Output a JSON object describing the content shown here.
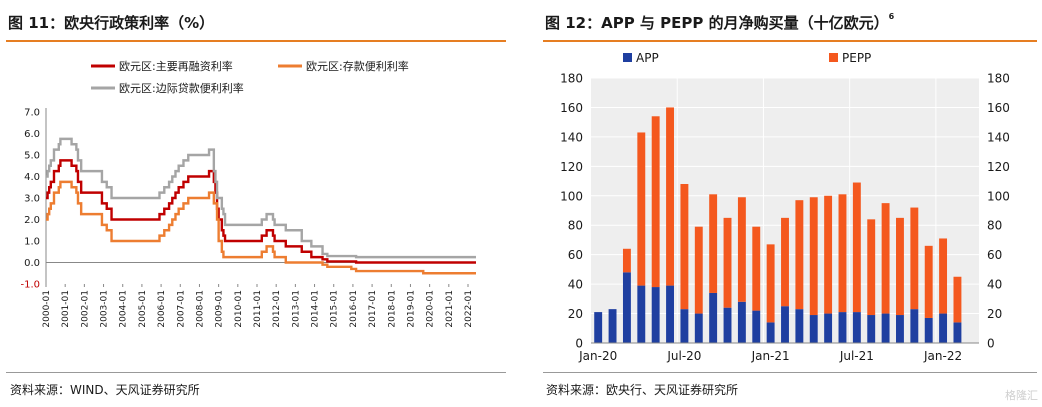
{
  "left_panel": {
    "title": "图 11：欧央行政策利率（%）",
    "source": "资料来源：WIND、天风证券研究所"
  },
  "right_panel": {
    "title": "图 12：APP 与 PEPP 的月净购买量（十亿欧元）",
    "title_sup": "6",
    "source": "资料来源：欧央行、天风证券研究所"
  },
  "watermark": "格隆汇",
  "colors": {
    "accent": "#E67E22",
    "mro": "#C00000",
    "deposit": "#ED7D31",
    "marginal": "#A5A5A5",
    "app": "#1F3FA0",
    "pepp": "#F4581E"
  },
  "chart_data": [
    {
      "type": "line",
      "ylim": [
        -1.0,
        7.0
      ],
      "yticks": [
        "-1.0",
        "0.0",
        "1.0",
        "2.0",
        "3.0",
        "4.0",
        "5.0",
        "6.0",
        "7.0"
      ],
      "xticks": [
        "2000-01",
        "2001-01",
        "2002-01",
        "2003-01",
        "2004-01",
        "2005-01",
        "2006-01",
        "2007-01",
        "2008-01",
        "2009-01",
        "2010-01",
        "2011-01",
        "2012-01",
        "2013-01",
        "2014-01",
        "2015-01",
        "2016-01",
        "2017-01",
        "2018-01",
        "2019-01",
        "2020-01",
        "2021-01",
        "2022-01"
      ],
      "legend": [
        "欧元区:主要再融资利率",
        "欧元区:存款便利利率",
        "欧元区:边际贷款便利利率"
      ],
      "series": [
        {
          "name": "欧元区:主要再融资利率",
          "color": "#C00000",
          "points": [
            [
              "2000-01",
              3.0
            ],
            [
              "2000-02",
              3.25
            ],
            [
              "2000-03",
              3.5
            ],
            [
              "2000-04",
              3.75
            ],
            [
              "2000-06",
              4.25
            ],
            [
              "2000-09",
              4.5
            ],
            [
              "2000-10",
              4.75
            ],
            [
              "2001-05",
              4.5
            ],
            [
              "2001-08",
              4.25
            ],
            [
              "2001-09",
              3.75
            ],
            [
              "2001-11",
              3.25
            ],
            [
              "2002-12",
              2.75
            ],
            [
              "2003-03",
              2.5
            ],
            [
              "2003-06",
              2.0
            ],
            [
              "2005-12",
              2.25
            ],
            [
              "2006-03",
              2.5
            ],
            [
              "2006-06",
              2.75
            ],
            [
              "2006-08",
              3.0
            ],
            [
              "2006-10",
              3.25
            ],
            [
              "2006-12",
              3.5
            ],
            [
              "2007-03",
              3.75
            ],
            [
              "2007-06",
              4.0
            ],
            [
              "2008-07",
              4.25
            ],
            [
              "2008-10",
              3.75
            ],
            [
              "2008-11",
              3.25
            ],
            [
              "2008-12",
              2.5
            ],
            [
              "2009-01",
              2.0
            ],
            [
              "2009-03",
              1.5
            ],
            [
              "2009-04",
              1.25
            ],
            [
              "2009-05",
              1.0
            ],
            [
              "2011-04",
              1.25
            ],
            [
              "2011-07",
              1.5
            ],
            [
              "2011-11",
              1.25
            ],
            [
              "2011-12",
              1.0
            ],
            [
              "2012-07",
              0.75
            ],
            [
              "2013-05",
              0.5
            ],
            [
              "2013-11",
              0.25
            ],
            [
              "2014-06",
              0.15
            ],
            [
              "2014-09",
              0.05
            ],
            [
              "2016-03",
              0.0
            ],
            [
              "2022-06",
              0.0
            ]
          ]
        },
        {
          "name": "欧元区:存款便利利率",
          "color": "#ED7D31",
          "points": [
            [
              "2000-01",
              2.0
            ],
            [
              "2000-02",
              2.25
            ],
            [
              "2000-03",
              2.5
            ],
            [
              "2000-04",
              2.75
            ],
            [
              "2000-06",
              3.25
            ],
            [
              "2000-09",
              3.5
            ],
            [
              "2000-10",
              3.75
            ],
            [
              "2001-05",
              3.5
            ],
            [
              "2001-08",
              3.25
            ],
            [
              "2001-09",
              2.75
            ],
            [
              "2001-11",
              2.25
            ],
            [
              "2002-12",
              1.75
            ],
            [
              "2003-03",
              1.5
            ],
            [
              "2003-06",
              1.0
            ],
            [
              "2005-12",
              1.25
            ],
            [
              "2006-03",
              1.5
            ],
            [
              "2006-06",
              1.75
            ],
            [
              "2006-08",
              2.0
            ],
            [
              "2006-10",
              2.25
            ],
            [
              "2006-12",
              2.5
            ],
            [
              "2007-03",
              2.75
            ],
            [
              "2007-06",
              3.0
            ],
            [
              "2008-07",
              3.25
            ],
            [
              "2008-10",
              2.75
            ],
            [
              "2008-11",
              2.75
            ],
            [
              "2008-12",
              2.0
            ],
            [
              "2009-01",
              1.0
            ],
            [
              "2009-03",
              0.5
            ],
            [
              "2009-04",
              0.25
            ],
            [
              "2011-04",
              0.5
            ],
            [
              "2011-07",
              0.75
            ],
            [
              "2011-11",
              0.5
            ],
            [
              "2011-12",
              0.25
            ],
            [
              "2012-07",
              0.0
            ],
            [
              "2014-06",
              -0.1
            ],
            [
              "2014-09",
              -0.2
            ],
            [
              "2015-12",
              -0.3
            ],
            [
              "2016-03",
              -0.4
            ],
            [
              "2019-09",
              -0.5
            ],
            [
              "2022-06",
              -0.5
            ]
          ]
        },
        {
          "name": "欧元区:边际贷款便利利率",
          "color": "#A5A5A5",
          "points": [
            [
              "2000-01",
              4.0
            ],
            [
              "2000-02",
              4.25
            ],
            [
              "2000-03",
              4.5
            ],
            [
              "2000-04",
              4.75
            ],
            [
              "2000-06",
              5.25
            ],
            [
              "2000-09",
              5.5
            ],
            [
              "2000-10",
              5.75
            ],
            [
              "2001-05",
              5.5
            ],
            [
              "2001-08",
              5.25
            ],
            [
              "2001-09",
              4.75
            ],
            [
              "2001-11",
              4.25
            ],
            [
              "2002-12",
              3.75
            ],
            [
              "2003-03",
              3.5
            ],
            [
              "2003-06",
              3.0
            ],
            [
              "2005-12",
              3.25
            ],
            [
              "2006-03",
              3.5
            ],
            [
              "2006-06",
              3.75
            ],
            [
              "2006-08",
              4.0
            ],
            [
              "2006-10",
              4.25
            ],
            [
              "2006-12",
              4.5
            ],
            [
              "2007-03",
              4.75
            ],
            [
              "2007-06",
              5.0
            ],
            [
              "2008-07",
              5.25
            ],
            [
              "2008-10",
              4.25
            ],
            [
              "2008-11",
              3.75
            ],
            [
              "2008-12",
              3.0
            ],
            [
              "2009-01",
              3.0
            ],
            [
              "2009-03",
              2.5
            ],
            [
              "2009-04",
              2.25
            ],
            [
              "2009-05",
              1.75
            ],
            [
              "2011-04",
              2.0
            ],
            [
              "2011-07",
              2.25
            ],
            [
              "2011-11",
              2.0
            ],
            [
              "2011-12",
              1.75
            ],
            [
              "2012-07",
              1.5
            ],
            [
              "2013-05",
              1.0
            ],
            [
              "2013-11",
              0.75
            ],
            [
              "2014-06",
              0.4
            ],
            [
              "2014-09",
              0.3
            ],
            [
              "2016-03",
              0.25
            ],
            [
              "2022-06",
              0.25
            ]
          ]
        }
      ]
    },
    {
      "type": "bar",
      "stacked": true,
      "ylim": [
        0,
        180
      ],
      "yticks": [
        "0",
        "20",
        "40",
        "60",
        "80",
        "100",
        "120",
        "140",
        "160",
        "180"
      ],
      "xticks": [
        "Jan-20",
        "Jul-20",
        "Jan-21",
        "Jul-21",
        "Jan-22"
      ],
      "legend": [
        "APP",
        "PEPP"
      ],
      "categories": [
        "2020-01",
        "2020-02",
        "2020-03",
        "2020-04",
        "2020-05",
        "2020-06",
        "2020-07",
        "2020-08",
        "2020-09",
        "2020-10",
        "2020-11",
        "2020-12",
        "2021-01",
        "2021-02",
        "2021-03",
        "2021-04",
        "2021-05",
        "2021-06",
        "2021-07",
        "2021-08",
        "2021-09",
        "2021-10",
        "2021-11",
        "2021-12",
        "2022-01",
        "2022-02",
        "2022-03"
      ],
      "series": [
        {
          "name": "APP",
          "color": "#1F3FA0",
          "values": [
            21,
            23,
            48,
            39,
            38,
            39,
            23,
            20,
            34,
            24,
            28,
            22,
            14,
            25,
            23,
            19,
            20,
            21,
            21,
            19,
            20,
            19,
            23,
            17,
            20,
            14,
            0
          ]
        },
        {
          "name": "PEPP",
          "color": "#F4581E",
          "values": [
            0,
            0,
            16,
            104,
            116,
            121,
            85,
            59,
            67,
            61,
            71,
            57,
            53,
            60,
            74,
            80,
            80,
            80,
            88,
            65,
            75,
            66,
            69,
            49,
            51,
            31,
            0
          ]
        }
      ]
    }
  ]
}
